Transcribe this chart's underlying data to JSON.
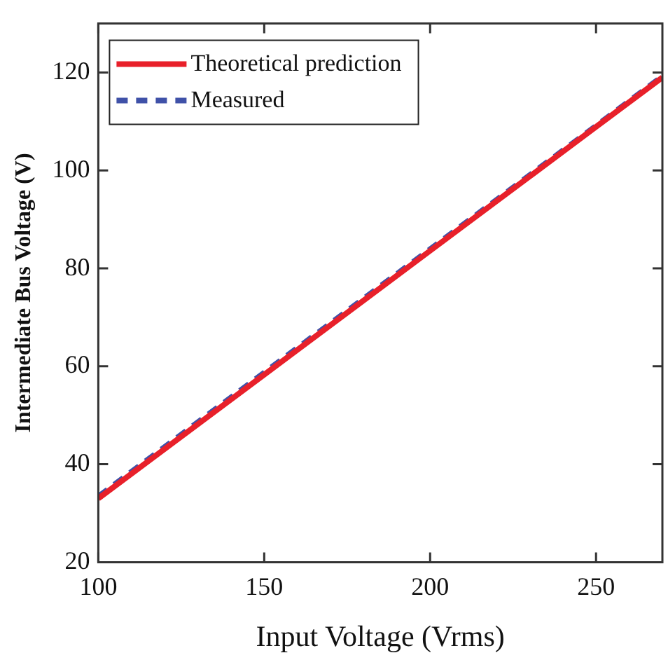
{
  "chart_data": {
    "type": "line",
    "xlabel": "Input Voltage (Vrms)",
    "ylabel": "Intermediate Bus Voltage (V)",
    "xlim": [
      100,
      270
    ],
    "xticks": [
      100,
      150,
      200,
      250
    ],
    "ylim": [
      20,
      130
    ],
    "yticks": [
      20,
      40,
      60,
      80,
      100,
      120
    ],
    "x": [
      100,
      150,
      200,
      250,
      270
    ],
    "series": [
      {
        "name": "Theoretical prediction",
        "color": "#e8202a",
        "line_style": "solid",
        "values": [
          33,
          58.3,
          83.6,
          108.9,
          119
        ]
      },
      {
        "name": "Measured",
        "color": "#3f51a8",
        "line_style": "dashed",
        "values": [
          33.5,
          58.8,
          84,
          109.2,
          119.3
        ]
      }
    ],
    "legend": "top left",
    "grid": false,
    "marker": "none"
  }
}
